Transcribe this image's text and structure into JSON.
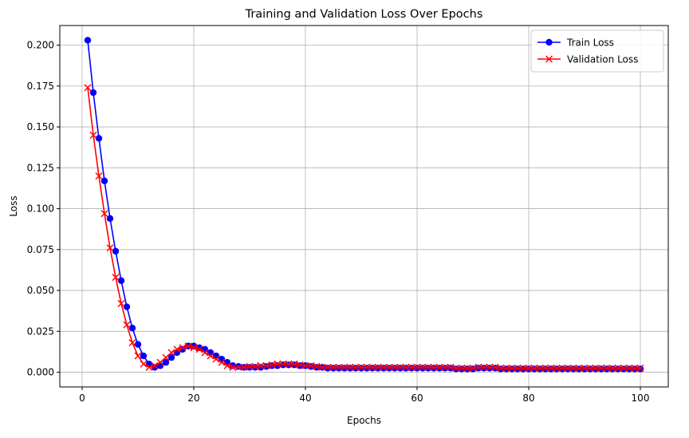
{
  "chart_data": {
    "type": "line",
    "title": "Training and Validation Loss Over Epochs",
    "xlabel": "Epochs",
    "ylabel": "Loss",
    "xlim": [
      -4,
      105
    ],
    "ylim": [
      -0.009,
      0.212
    ],
    "xticks": [
      0,
      20,
      40,
      60,
      80,
      100
    ],
    "yticks": [
      0.0,
      0.025,
      0.05,
      0.075,
      0.1,
      0.125,
      0.15,
      0.175,
      0.2
    ],
    "xtick_labels": [
      "0",
      "20",
      "40",
      "60",
      "80",
      "100"
    ],
    "ytick_labels": [
      "0.000",
      "0.025",
      "0.050",
      "0.075",
      "0.100",
      "0.125",
      "0.150",
      "0.175",
      "0.200"
    ],
    "grid": true,
    "legend_position": "top-right",
    "x": [
      1,
      2,
      3,
      4,
      5,
      6,
      7,
      8,
      9,
      10,
      11,
      12,
      13,
      14,
      15,
      16,
      17,
      18,
      19,
      20,
      21,
      22,
      23,
      24,
      25,
      26,
      27,
      28,
      29,
      30,
      31,
      32,
      33,
      34,
      35,
      36,
      37,
      38,
      39,
      40,
      41,
      42,
      43,
      44,
      45,
      46,
      47,
      48,
      49,
      50,
      51,
      52,
      53,
      54,
      55,
      56,
      57,
      58,
      59,
      60,
      61,
      62,
      63,
      64,
      65,
      66,
      67,
      68,
      69,
      70,
      71,
      72,
      73,
      74,
      75,
      76,
      77,
      78,
      79,
      80,
      81,
      82,
      83,
      84,
      85,
      86,
      87,
      88,
      89,
      90,
      91,
      92,
      93,
      94,
      95,
      96,
      97,
      98,
      99,
      100
    ],
    "series": [
      {
        "name": "Train Loss",
        "color": "#0000ff",
        "marker": "circle",
        "values": [
          0.203,
          0.171,
          0.143,
          0.117,
          0.094,
          0.074,
          0.056,
          0.04,
          0.027,
          0.017,
          0.01,
          0.005,
          0.003,
          0.004,
          0.006,
          0.009,
          0.012,
          0.014,
          0.016,
          0.016,
          0.015,
          0.014,
          0.012,
          0.01,
          0.008,
          0.006,
          0.004,
          0.0035,
          0.003,
          0.003,
          0.003,
          0.003,
          0.0035,
          0.004,
          0.004,
          0.0045,
          0.0045,
          0.0045,
          0.004,
          0.004,
          0.0035,
          0.003,
          0.003,
          0.0025,
          0.0025,
          0.0025,
          0.0025,
          0.0025,
          0.0025,
          0.0025,
          0.0025,
          0.0025,
          0.0025,
          0.0025,
          0.0025,
          0.0025,
          0.0025,
          0.0025,
          0.0025,
          0.0025,
          0.0025,
          0.0025,
          0.0025,
          0.0025,
          0.0025,
          0.0025,
          0.002,
          0.002,
          0.002,
          0.002,
          0.0025,
          0.0025,
          0.0025,
          0.0025,
          0.002,
          0.002,
          0.002,
          0.002,
          0.002,
          0.002,
          0.002,
          0.002,
          0.002,
          0.002,
          0.002,
          0.002,
          0.002,
          0.002,
          0.002,
          0.002,
          0.002,
          0.002,
          0.002,
          0.002,
          0.002,
          0.002,
          0.002,
          0.002,
          0.002,
          0.002
        ]
      },
      {
        "name": "Validation Loss",
        "color": "#ff0000",
        "marker": "x",
        "values": [
          0.174,
          0.145,
          0.12,
          0.097,
          0.076,
          0.058,
          0.042,
          0.029,
          0.018,
          0.01,
          0.005,
          0.003,
          0.004,
          0.006,
          0.009,
          0.012,
          0.014,
          0.015,
          0.016,
          0.015,
          0.014,
          0.012,
          0.01,
          0.008,
          0.006,
          0.004,
          0.003,
          0.003,
          0.003,
          0.0035,
          0.0035,
          0.004,
          0.004,
          0.0045,
          0.005,
          0.005,
          0.005,
          0.005,
          0.0045,
          0.004,
          0.004,
          0.0035,
          0.003,
          0.003,
          0.003,
          0.003,
          0.003,
          0.003,
          0.003,
          0.003,
          0.003,
          0.003,
          0.003,
          0.003,
          0.003,
          0.003,
          0.003,
          0.003,
          0.003,
          0.003,
          0.003,
          0.003,
          0.003,
          0.003,
          0.003,
          0.003,
          0.0025,
          0.0025,
          0.0025,
          0.0025,
          0.003,
          0.003,
          0.003,
          0.003,
          0.0025,
          0.0025,
          0.0025,
          0.0025,
          0.0025,
          0.0025,
          0.0025,
          0.0025,
          0.0025,
          0.0025,
          0.0025,
          0.0025,
          0.0025,
          0.0025,
          0.0025,
          0.0025,
          0.0025,
          0.0025,
          0.0025,
          0.0025,
          0.0025,
          0.0025,
          0.0025,
          0.0025,
          0.0025,
          0.0025
        ]
      }
    ]
  }
}
